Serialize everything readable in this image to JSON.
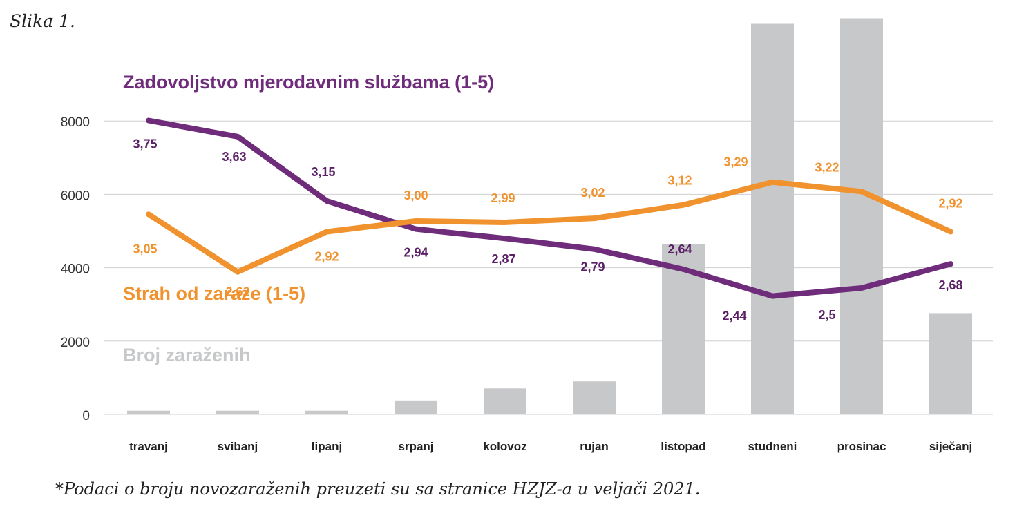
{
  "figure_label": "Slika 1.",
  "footnote": "*Podaci o broju novozaraženih preuzeti su sa stranice HZJZ-a u veljači 2021.",
  "chart_data": {
    "type": "bar+line",
    "categories": [
      "travanj",
      "svibanj",
      "lipanj",
      "srpanj",
      "kolovoz",
      "rujan",
      "listopad",
      "studneni",
      "prosinac",
      "siječanj"
    ],
    "y_axis": {
      "ticks": [
        0,
        2000,
        4000,
        6000,
        8000
      ],
      "range": [
        0,
        10800
      ],
      "grid": true
    },
    "bars": {
      "name": "Broj zaraženih",
      "color": "#c7c8ca",
      "values": [
        100,
        100,
        100,
        380,
        710,
        900,
        4650,
        10650,
        10800,
        2760
      ]
    },
    "lines": [
      {
        "name": "Zadovoljstvo mjerodavnim službama (1-5)",
        "color": "#6e2c7a",
        "values": [
          3.75,
          3.63,
          3.15,
          2.94,
          2.87,
          2.79,
          2.64,
          2.44,
          2.5,
          2.68
        ],
        "labels": [
          "3,75",
          "3,63",
          "3,15",
          "2,94",
          "2,87",
          "2,79",
          "2,64",
          "2,44",
          "2,5",
          "2,68"
        ]
      },
      {
        "name": "Strah od zaraze (1-5)",
        "color": "#f0922d",
        "values": [
          3.05,
          2.62,
          2.92,
          3.0,
          2.99,
          3.02,
          3.12,
          3.29,
          3.22,
          2.92
        ],
        "labels": [
          "3,05",
          "2,62",
          "2,92",
          "3,00",
          "2,99",
          "3,02",
          "3,12",
          "3,29",
          "3,22",
          "2,92"
        ]
      }
    ],
    "legend_placement": "inside-left"
  }
}
